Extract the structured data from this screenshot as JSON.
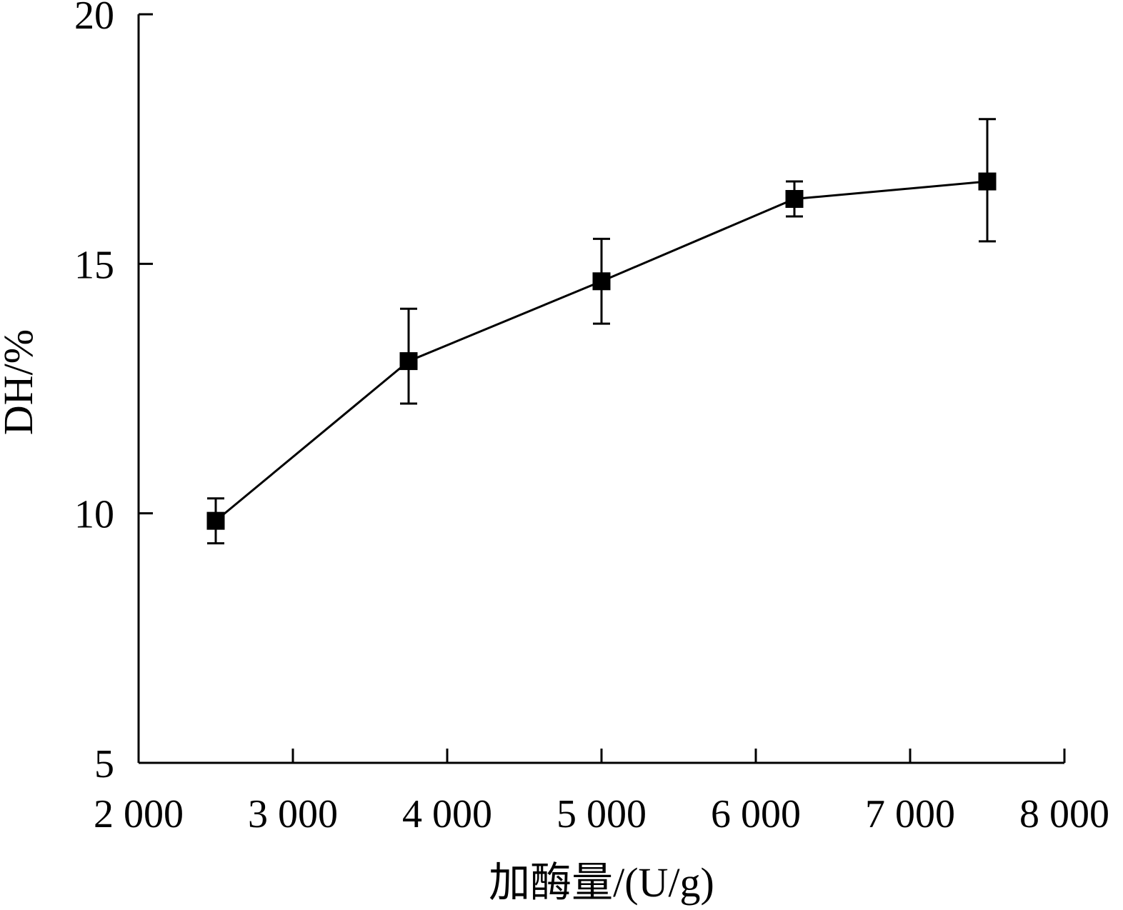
{
  "chart_data": {
    "type": "line",
    "title": "",
    "xlabel": "加酶量/(U/g)",
    "ylabel": "DH/%",
    "xlim": [
      2000,
      8000
    ],
    "ylim": [
      5,
      20
    ],
    "x_ticks": [
      2000,
      3000,
      4000,
      5000,
      6000,
      7000,
      8000
    ],
    "x_tick_labels": [
      "2 000",
      "3 000",
      "4 000",
      "5 000",
      "6 000",
      "7 000",
      "8 000"
    ],
    "y_ticks": [
      5,
      10,
      15,
      20
    ],
    "y_tick_labels": [
      "5",
      "10",
      "15",
      "20"
    ],
    "grid": false,
    "series": [
      {
        "x": [
          2500,
          3750,
          5000,
          6250,
          7500
        ],
        "y": [
          9.85,
          13.05,
          14.65,
          16.3,
          16.65
        ],
        "err_low": [
          9.4,
          12.2,
          13.8,
          15.95,
          15.45
        ],
        "err_high": [
          10.3,
          14.1,
          15.5,
          16.65,
          17.9
        ],
        "marker": "square",
        "color": "#000000"
      }
    ]
  }
}
